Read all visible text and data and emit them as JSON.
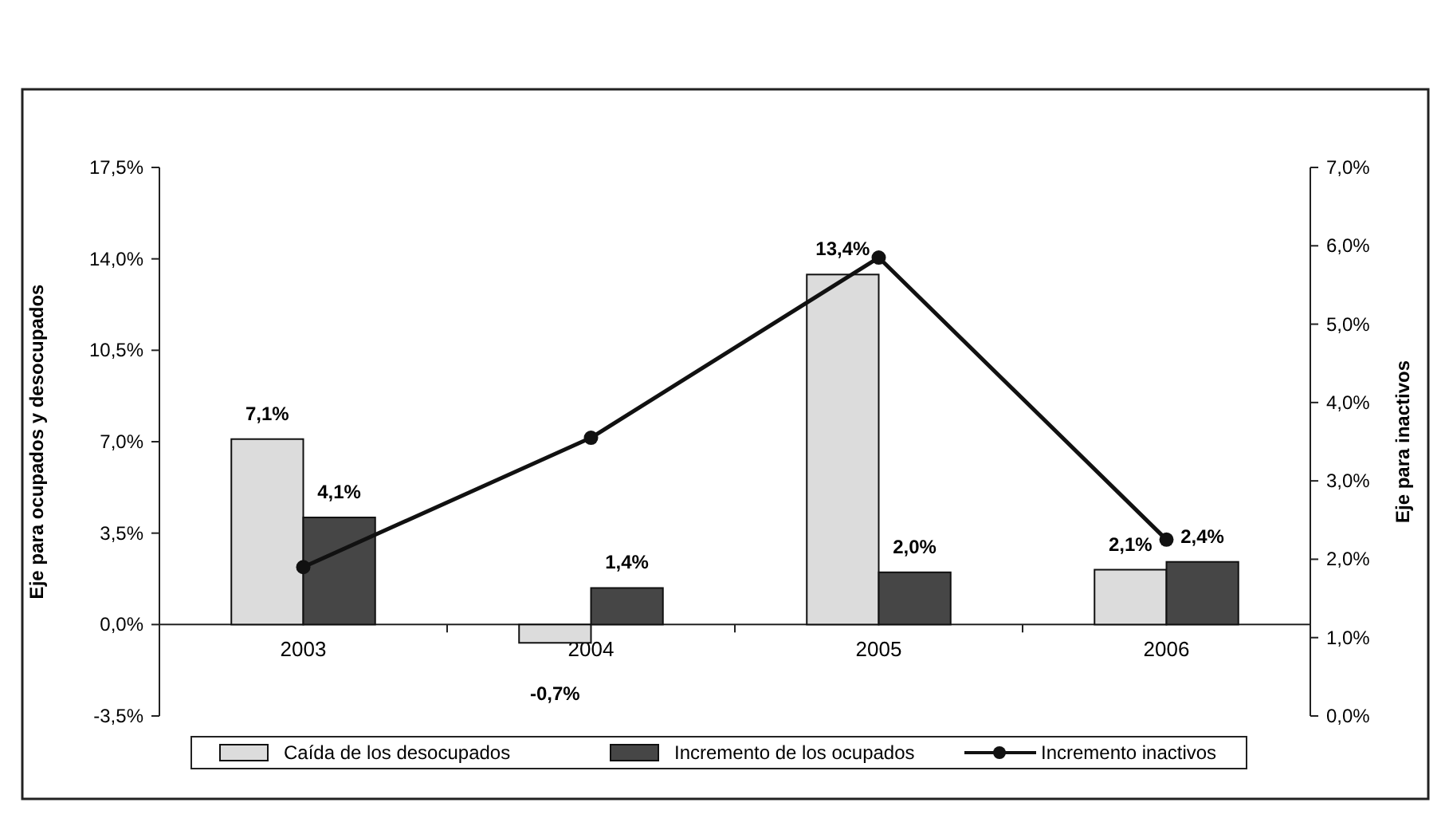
{
  "chart_data": {
    "type": "bar",
    "categories": [
      "2003",
      "2004",
      "2005",
      "2006"
    ],
    "ylabel": "Eje para ocupados y desocupados",
    "y2label": "Eje para inactivos",
    "ylim": [
      -3.5,
      17.5
    ],
    "yticks": [
      {
        "value": -3.5,
        "label": "-3,5%"
      },
      {
        "value": 0,
        "label": "0,0%"
      },
      {
        "value": 3.5,
        "label": "3,5%"
      },
      {
        "value": 7,
        "label": "7,0%"
      },
      {
        "value": 10.5,
        "label": "10,5%"
      },
      {
        "value": 14,
        "label": "14,0%"
      },
      {
        "value": 17.5,
        "label": "17,5%"
      }
    ],
    "y2lim": [
      0,
      7
    ],
    "y2ticks": [
      {
        "value": 0,
        "label": "0,0%"
      },
      {
        "value": 1,
        "label": "1,0%"
      },
      {
        "value": 2,
        "label": "2,0%"
      },
      {
        "value": 3,
        "label": "3,0%"
      },
      {
        "value": 4,
        "label": "4,0%"
      },
      {
        "value": 5,
        "label": "5,0%"
      },
      {
        "value": 6,
        "label": "6,0%"
      },
      {
        "value": 7,
        "label": "7,0%"
      }
    ],
    "series": [
      {
        "name": "Caída de los desocupados",
        "color": "#dcdcdc",
        "values": [
          7.1,
          -0.7,
          13.4,
          2.1
        ],
        "value_labels": [
          "7,1%",
          "-0,7%",
          "13,4%",
          "2,1%"
        ]
      },
      {
        "name": "Incremento de los ocupados",
        "color": "#464646",
        "values": [
          4.1,
          1.4,
          2.0,
          2.4
        ],
        "value_labels": [
          "4,1%",
          "1,4%",
          "2,0%",
          "2,4%"
        ]
      },
      {
        "name": "Incremento inactivos",
        "type": "line",
        "axis": "y2",
        "color": "#111111",
        "marker": "circle",
        "values": [
          1.9,
          3.55,
          5.85,
          2.25
        ]
      }
    ],
    "grid": false,
    "legend": "bottom"
  }
}
